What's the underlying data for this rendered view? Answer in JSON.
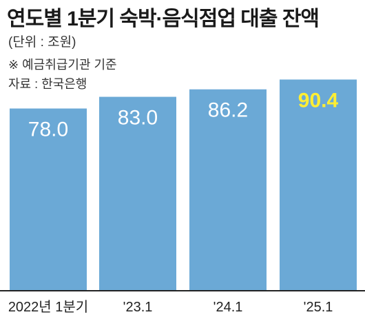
{
  "header": {
    "title": "연도별 1분기 숙박·음식점업 대출 잔액",
    "unit": "(단위 : 조원)",
    "note": "※ 예금취급기관 기준",
    "source": "자료 : 한국은행"
  },
  "colors": {
    "bar": "#6ba9d6",
    "label_default": "#ffffff",
    "label_highlight": "#ffee33",
    "axis": "#222222"
  },
  "chart_data": {
    "type": "bar",
    "categories": [
      "2022년 1분기",
      "'23.1",
      "'24.1",
      "'25.1"
    ],
    "values": [
      78.0,
      83.0,
      86.2,
      90.4
    ],
    "value_labels": [
      "78.0",
      "83.0",
      "86.2",
      "90.4"
    ],
    "highlight_index": 3,
    "title": "연도별 1분기 숙박·음식점업 대출 잔액",
    "ylim": [
      0,
      92
    ],
    "grid": false,
    "legend": "none"
  }
}
